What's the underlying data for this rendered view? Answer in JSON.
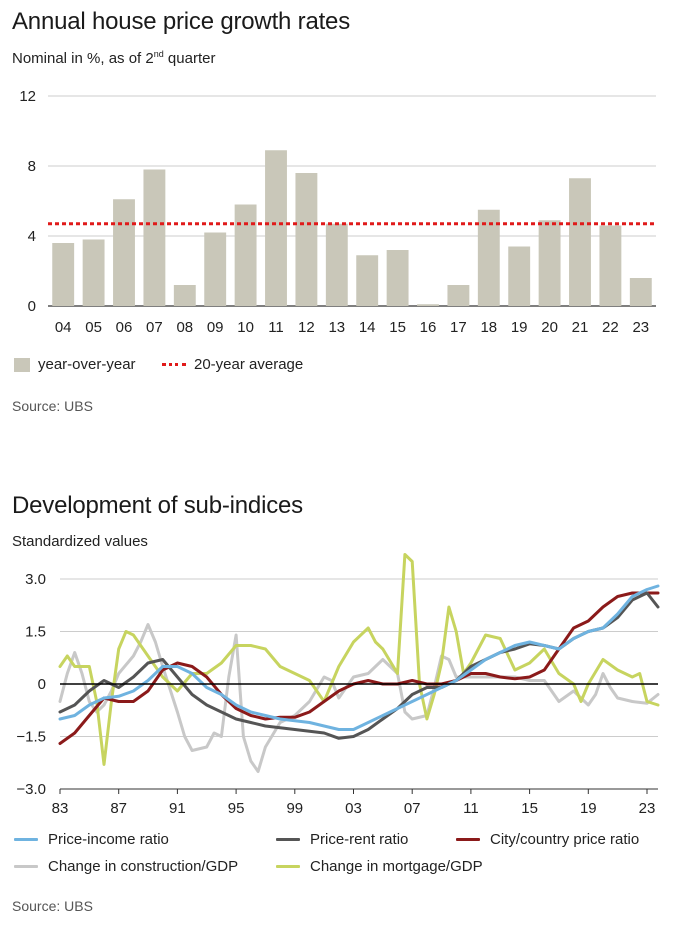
{
  "chart_data": [
    {
      "type": "bar",
      "title": "Annual house price growth rates",
      "subtitle_main": "Nominal in %, as of 2",
      "subtitle_sup": "nd",
      "subtitle_end": " quarter",
      "categories": [
        "04",
        "05",
        "06",
        "07",
        "08",
        "09",
        "10",
        "11",
        "12",
        "13",
        "14",
        "15",
        "16",
        "17",
        "18",
        "19",
        "20",
        "21",
        "22",
        "23"
      ],
      "series": [
        {
          "name": "year-over-year",
          "values": [
            3.6,
            3.8,
            6.1,
            7.8,
            1.2,
            4.2,
            5.8,
            8.9,
            7.6,
            4.7,
            2.9,
            3.2,
            0.1,
            1.2,
            5.5,
            3.4,
            4.9,
            7.3,
            4.6,
            1.6
          ],
          "color": "#c9c7b9"
        }
      ],
      "reference_line": {
        "name": "20-year average",
        "value": 4.7,
        "color": "#e01a1a"
      },
      "ylim": [
        0,
        12
      ],
      "yticks": [
        "0",
        "4",
        "8",
        "12"
      ],
      "source": "Source: UBS"
    },
    {
      "type": "line",
      "title": "Development of sub-indices",
      "subtitle": "Standardized values",
      "x_start": 1983,
      "x_end": 2023.75,
      "xticks": [
        "83",
        "87",
        "91",
        "95",
        "99",
        "03",
        "07",
        "11",
        "15",
        "19",
        "23"
      ],
      "ylim": [
        -3.0,
        3.0
      ],
      "yticks": [
        "−3.0",
        "−1.5",
        "0",
        "1.5",
        "3.0"
      ],
      "series": [
        {
          "name": "Price-income ratio",
          "color": "#6fb3e0",
          "points": [
            [
              1983,
              -1.0
            ],
            [
              1984,
              -0.9
            ],
            [
              1985,
              -0.6
            ],
            [
              1986,
              -0.4
            ],
            [
              1987,
              -0.35
            ],
            [
              1988,
              -0.2
            ],
            [
              1989,
              0.1
            ],
            [
              1990,
              0.5
            ],
            [
              1991,
              0.5
            ],
            [
              1992,
              0.3
            ],
            [
              1993,
              -0.1
            ],
            [
              1994,
              -0.3
            ],
            [
              1995,
              -0.6
            ],
            [
              1996,
              -0.8
            ],
            [
              1997,
              -0.9
            ],
            [
              1998,
              -1.0
            ],
            [
              1999,
              -1.05
            ],
            [
              2000,
              -1.1
            ],
            [
              2001,
              -1.2
            ],
            [
              2002,
              -1.3
            ],
            [
              2003,
              -1.3
            ],
            [
              2004,
              -1.1
            ],
            [
              2005,
              -0.9
            ],
            [
              2006,
              -0.7
            ],
            [
              2007,
              -0.5
            ],
            [
              2008,
              -0.3
            ],
            [
              2009,
              -0.1
            ],
            [
              2010,
              0.1
            ],
            [
              2011,
              0.4
            ],
            [
              2012,
              0.7
            ],
            [
              2013,
              0.9
            ],
            [
              2014,
              1.1
            ],
            [
              2015,
              1.2
            ],
            [
              2016,
              1.1
            ],
            [
              2017,
              1.0
            ],
            [
              2018,
              1.3
            ],
            [
              2019,
              1.5
            ],
            [
              2020,
              1.6
            ],
            [
              2021,
              2.0
            ],
            [
              2022,
              2.5
            ],
            [
              2023,
              2.7
            ],
            [
              2023.75,
              2.8
            ]
          ]
        },
        {
          "name": "Price-rent ratio",
          "color": "#555555",
          "points": [
            [
              1983,
              -0.8
            ],
            [
              1984,
              -0.6
            ],
            [
              1985,
              -0.2
            ],
            [
              1986,
              0.1
            ],
            [
              1987,
              -0.1
            ],
            [
              1988,
              0.2
            ],
            [
              1989,
              0.6
            ],
            [
              1990,
              0.7
            ],
            [
              1991,
              0.2
            ],
            [
              1992,
              -0.3
            ],
            [
              1993,
              -0.6
            ],
            [
              1994,
              -0.8
            ],
            [
              1995,
              -1.0
            ],
            [
              1996,
              -1.1
            ],
            [
              1997,
              -1.2
            ],
            [
              1998,
              -1.25
            ],
            [
              1999,
              -1.3
            ],
            [
              2000,
              -1.35
            ],
            [
              2001,
              -1.4
            ],
            [
              2002,
              -1.55
            ],
            [
              2003,
              -1.5
            ],
            [
              2004,
              -1.3
            ],
            [
              2005,
              -1.0
            ],
            [
              2006,
              -0.7
            ],
            [
              2007,
              -0.3
            ],
            [
              2008,
              -0.1
            ],
            [
              2009,
              -0.1
            ],
            [
              2010,
              0.1
            ],
            [
              2011,
              0.5
            ],
            [
              2012,
              0.7
            ],
            [
              2013,
              0.9
            ],
            [
              2014,
              1.0
            ],
            [
              2015,
              1.15
            ],
            [
              2016,
              1.1
            ],
            [
              2017,
              1.0
            ],
            [
              2018,
              1.3
            ],
            [
              2019,
              1.5
            ],
            [
              2020,
              1.6
            ],
            [
              2021,
              1.9
            ],
            [
              2022,
              2.4
            ],
            [
              2023,
              2.6
            ],
            [
              2023.75,
              2.2
            ]
          ]
        },
        {
          "name": "City/country price ratio",
          "color": "#8b1a1a",
          "points": [
            [
              1983,
              -1.7
            ],
            [
              1984,
              -1.4
            ],
            [
              1985,
              -0.9
            ],
            [
              1986,
              -0.4
            ],
            [
              1987,
              -0.5
            ],
            [
              1988,
              -0.5
            ],
            [
              1989,
              -0.2
            ],
            [
              1990,
              0.4
            ],
            [
              1991,
              0.6
            ],
            [
              1992,
              0.5
            ],
            [
              1993,
              0.2
            ],
            [
              1994,
              -0.3
            ],
            [
              1995,
              -0.7
            ],
            [
              1996,
              -0.9
            ],
            [
              1997,
              -1.0
            ],
            [
              1998,
              -0.95
            ],
            [
              1999,
              -0.95
            ],
            [
              2000,
              -0.8
            ],
            [
              2001,
              -0.5
            ],
            [
              2002,
              -0.2
            ],
            [
              2003,
              0.0
            ],
            [
              2004,
              0.1
            ],
            [
              2005,
              0.0
            ],
            [
              2006,
              0.0
            ],
            [
              2007,
              0.1
            ],
            [
              2008,
              0.0
            ],
            [
              2009,
              0.0
            ],
            [
              2010,
              0.1
            ],
            [
              2011,
              0.3
            ],
            [
              2012,
              0.3
            ],
            [
              2013,
              0.2
            ],
            [
              2014,
              0.15
            ],
            [
              2015,
              0.2
            ],
            [
              2016,
              0.4
            ],
            [
              2017,
              1.0
            ],
            [
              2018,
              1.6
            ],
            [
              2019,
              1.8
            ],
            [
              2020,
              2.2
            ],
            [
              2021,
              2.5
            ],
            [
              2022,
              2.6
            ],
            [
              2023,
              2.6
            ],
            [
              2023.75,
              2.6
            ]
          ]
        },
        {
          "name": "Change in construction/GDP",
          "color": "#c8c8c8",
          "points": [
            [
              1983,
              -0.5
            ],
            [
              1983.5,
              0.3
            ],
            [
              1984,
              0.9
            ],
            [
              1984.5,
              0.3
            ],
            [
              1985,
              -0.5
            ],
            [
              1985.5,
              -0.8
            ],
            [
              1986,
              -0.6
            ],
            [
              1986.5,
              -0.2
            ],
            [
              1987,
              0.3
            ],
            [
              1988,
              0.8
            ],
            [
              1988.5,
              1.2
            ],
            [
              1989,
              1.7
            ],
            [
              1989.5,
              1.2
            ],
            [
              1990,
              0.5
            ],
            [
              1991,
              -0.8
            ],
            [
              1991.5,
              -1.5
            ],
            [
              1992,
              -1.9
            ],
            [
              1993,
              -1.8
            ],
            [
              1993.5,
              -1.4
            ],
            [
              1994,
              -1.5
            ],
            [
              1994.5,
              0.2
            ],
            [
              1995,
              1.4
            ],
            [
              1995.5,
              -1.5
            ],
            [
              1996,
              -2.2
            ],
            [
              1996.5,
              -2.5
            ],
            [
              1997,
              -1.8
            ],
            [
              1998,
              -1.1
            ],
            [
              1999,
              -0.9
            ],
            [
              2000,
              -0.5
            ],
            [
              2001,
              0.2
            ],
            [
              2001.5,
              0.1
            ],
            [
              2002,
              -0.4
            ],
            [
              2003,
              0.2
            ],
            [
              2004,
              0.3
            ],
            [
              2005,
              0.7
            ],
            [
              2006,
              0.3
            ],
            [
              2006.5,
              -0.8
            ],
            [
              2007,
              -1.0
            ],
            [
              2008,
              -0.9
            ],
            [
              2008.5,
              -0.1
            ],
            [
              2009,
              0.8
            ],
            [
              2009.5,
              0.7
            ],
            [
              2010,
              0.2
            ],
            [
              2011,
              0.2
            ],
            [
              2012,
              0.2
            ],
            [
              2013,
              0.2
            ],
            [
              2014,
              0.2
            ],
            [
              2015,
              0.1
            ],
            [
              2016,
              0.1
            ],
            [
              2017,
              -0.5
            ],
            [
              2018,
              -0.2
            ],
            [
              2019,
              -0.6
            ],
            [
              2019.5,
              -0.3
            ],
            [
              2020,
              0.3
            ],
            [
              2020.5,
              -0.1
            ],
            [
              2021,
              -0.4
            ],
            [
              2022,
              -0.5
            ],
            [
              2023,
              -0.55
            ],
            [
              2023.75,
              -0.3
            ]
          ]
        },
        {
          "name": "Change in mortgage/GDP",
          "color": "#c7d45f",
          "points": [
            [
              1983,
              0.5
            ],
            [
              1983.5,
              0.8
            ],
            [
              1984,
              0.5
            ],
            [
              1985,
              0.5
            ],
            [
              1985.5,
              -0.5
            ],
            [
              1986,
              -2.3
            ],
            [
              1986.5,
              -0.5
            ],
            [
              1987,
              1.0
            ],
            [
              1987.5,
              1.5
            ],
            [
              1988,
              1.4
            ],
            [
              1989,
              0.8
            ],
            [
              1990,
              0.2
            ],
            [
              1991,
              -0.2
            ],
            [
              1992,
              0.3
            ],
            [
              1993,
              0.3
            ],
            [
              1994,
              0.6
            ],
            [
              1995,
              1.1
            ],
            [
              1996,
              1.1
            ],
            [
              1997,
              1.0
            ],
            [
              1998,
              0.5
            ],
            [
              1999,
              0.3
            ],
            [
              2000,
              0.1
            ],
            [
              2001,
              -0.5
            ],
            [
              2002,
              0.5
            ],
            [
              2003,
              1.2
            ],
            [
              2004,
              1.6
            ],
            [
              2004.5,
              1.2
            ],
            [
              2005,
              1.0
            ],
            [
              2006,
              0.3
            ],
            [
              2006.5,
              3.7
            ],
            [
              2007,
              3.5
            ],
            [
              2007.5,
              0.0
            ],
            [
              2008,
              -1.0
            ],
            [
              2008.5,
              -0.3
            ],
            [
              2009,
              0.6
            ],
            [
              2009.5,
              2.2
            ],
            [
              2010,
              1.5
            ],
            [
              2010.5,
              0.3
            ],
            [
              2011,
              0.6
            ],
            [
              2012,
              1.4
            ],
            [
              2013,
              1.3
            ],
            [
              2014,
              0.4
            ],
            [
              2015,
              0.6
            ],
            [
              2016,
              1.0
            ],
            [
              2017,
              0.3
            ],
            [
              2018,
              0.0
            ],
            [
              2018.5,
              -0.5
            ],
            [
              2019,
              0.0
            ],
            [
              2020,
              0.7
            ],
            [
              2021,
              0.4
            ],
            [
              2022,
              0.2
            ],
            [
              2022.5,
              0.3
            ],
            [
              2023,
              -0.5
            ],
            [
              2023.75,
              -0.6
            ]
          ]
        }
      ],
      "source": "Source: UBS"
    }
  ]
}
